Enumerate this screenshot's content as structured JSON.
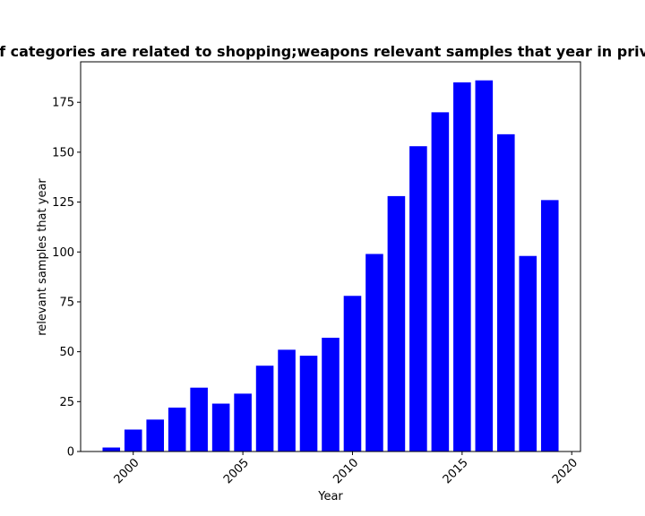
{
  "chart_data": {
    "type": "bar",
    "title": "Fraction of categories are related to shopping;weapons relevant samples that year in privacy policies",
    "xlabel": "Year",
    "ylabel": "relevant samples that year",
    "x": [
      1999,
      2000,
      2001,
      2002,
      2003,
      2004,
      2005,
      2006,
      2007,
      2008,
      2009,
      2010,
      2011,
      2012,
      2013,
      2014,
      2015,
      2016,
      2017,
      2018,
      2019
    ],
    "values": [
      2,
      11,
      16,
      22,
      32,
      24,
      29,
      43,
      51,
      48,
      57,
      78,
      99,
      128,
      153,
      170,
      185,
      186,
      159,
      98,
      126
    ],
    "xlim": [
      1997.6,
      2020.4
    ],
    "ylim": [
      0,
      195.3
    ],
    "xticks": [
      2000,
      2005,
      2010,
      2015,
      2020
    ],
    "xtick_labels": [
      "2000",
      "2005",
      "2010",
      "2015",
      "2020"
    ],
    "yticks": [
      0,
      25,
      50,
      75,
      100,
      125,
      150,
      175
    ],
    "ytick_labels": [
      "0",
      "25",
      "50",
      "75",
      "100",
      "125",
      "150",
      "175"
    ],
    "bar_color": "#0000ff",
    "grid": false,
    "legend": false
  }
}
